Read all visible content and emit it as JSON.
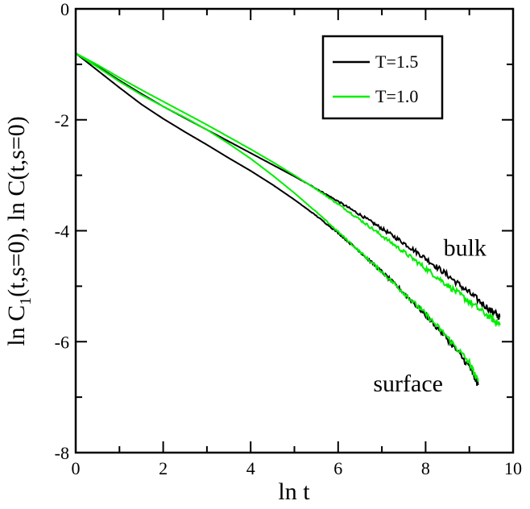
{
  "chart_data": {
    "type": "line",
    "title": "",
    "xlabel": "ln t",
    "ylabel": "ln C1(t,s=0), ln C(t,s=0)",
    "ylabel_parts": {
      "a": "ln C",
      "sub": "1",
      "b": "(t,s=0), ln C(t,s=0)"
    },
    "xlim": [
      0,
      10
    ],
    "ylim": [
      -8,
      0
    ],
    "xticks": [
      0,
      2,
      4,
      6,
      8,
      10
    ],
    "yticks": [
      0,
      -2,
      -4,
      -6,
      -8
    ],
    "xtick_labels": [
      "0",
      "2",
      "4",
      "6",
      "8",
      "10"
    ],
    "ytick_labels": [
      "0",
      "-2",
      "-4",
      "-6",
      "-8"
    ],
    "grid": false,
    "legend": {
      "placement": "top-right",
      "entries": [
        {
          "label": "T=1.5",
          "color": "#000000"
        },
        {
          "label": "T=1.0",
          "color": "#00ee00"
        }
      ]
    },
    "annotations": [
      {
        "text": "bulk",
        "x": 8.9,
        "y": -4.45
      },
      {
        "text": "surface",
        "x": 7.6,
        "y": -6.9
      }
    ],
    "series": [
      {
        "name": "T=1.5 bulk",
        "color": "#000000",
        "points": [
          [
            0,
            -0.8
          ],
          [
            0.5,
            -1.04
          ],
          [
            1,
            -1.29
          ],
          [
            1.5,
            -1.53
          ],
          [
            2,
            -1.76
          ],
          [
            2.5,
            -1.97
          ],
          [
            3,
            -2.18
          ],
          [
            3.5,
            -2.39
          ],
          [
            4,
            -2.6
          ],
          [
            4.5,
            -2.81
          ],
          [
            5,
            -3.02
          ],
          [
            5.5,
            -3.24
          ],
          [
            6,
            -3.47
          ],
          [
            6.5,
            -3.71
          ],
          [
            7,
            -3.96
          ],
          [
            7.5,
            -4.22
          ],
          [
            8,
            -4.5
          ],
          [
            8.5,
            -4.8
          ],
          [
            9,
            -5.12
          ],
          [
            9.5,
            -5.44
          ],
          [
            9.7,
            -5.56
          ]
        ]
      },
      {
        "name": "T=1.0 bulk",
        "color": "#00ee00",
        "points": [
          [
            0,
            -0.8
          ],
          [
            0.5,
            -1.01
          ],
          [
            1,
            -1.24
          ],
          [
            1.5,
            -1.46
          ],
          [
            2,
            -1.67
          ],
          [
            2.5,
            -1.88
          ],
          [
            3,
            -2.09
          ],
          [
            3.5,
            -2.31
          ],
          [
            4,
            -2.53
          ],
          [
            4.5,
            -2.76
          ],
          [
            5,
            -3.0
          ],
          [
            5.5,
            -3.25
          ],
          [
            6,
            -3.52
          ],
          [
            6.5,
            -3.8
          ],
          [
            7,
            -4.09
          ],
          [
            7.5,
            -4.38
          ],
          [
            8,
            -4.68
          ],
          [
            8.5,
            -4.98
          ],
          [
            9,
            -5.28
          ],
          [
            9.5,
            -5.58
          ],
          [
            9.7,
            -5.7
          ]
        ]
      },
      {
        "name": "T=1.5 surface",
        "color": "#000000",
        "points": [
          [
            0,
            -0.8
          ],
          [
            0.5,
            -1.11
          ],
          [
            1,
            -1.42
          ],
          [
            1.5,
            -1.72
          ],
          [
            2,
            -1.98
          ],
          [
            2.5,
            -2.22
          ],
          [
            3,
            -2.45
          ],
          [
            3.5,
            -2.69
          ],
          [
            4,
            -2.92
          ],
          [
            4.5,
            -3.17
          ],
          [
            5,
            -3.44
          ],
          [
            5.5,
            -3.73
          ],
          [
            6,
            -4.04
          ],
          [
            6.5,
            -4.38
          ],
          [
            7,
            -4.74
          ],
          [
            7.5,
            -5.12
          ],
          [
            8,
            -5.52
          ],
          [
            8.5,
            -5.95
          ],
          [
            9,
            -6.45
          ],
          [
            9.2,
            -6.78
          ]
        ]
      },
      {
        "name": "T=1.0 surface",
        "color": "#00ee00",
        "points": [
          [
            0,
            -0.8
          ],
          [
            0.5,
            -1.05
          ],
          [
            1,
            -1.31
          ],
          [
            1.5,
            -1.55
          ],
          [
            2,
            -1.76
          ],
          [
            2.5,
            -1.96
          ],
          [
            3,
            -2.18
          ],
          [
            3.5,
            -2.43
          ],
          [
            4,
            -2.7
          ],
          [
            4.5,
            -3.0
          ],
          [
            5,
            -3.32
          ],
          [
            5.5,
            -3.66
          ],
          [
            6,
            -4.02
          ],
          [
            6.5,
            -4.38
          ],
          [
            7,
            -4.74
          ],
          [
            7.5,
            -5.12
          ],
          [
            8,
            -5.5
          ],
          [
            8.5,
            -5.92
          ],
          [
            9,
            -6.38
          ],
          [
            9.2,
            -6.72
          ]
        ]
      }
    ]
  }
}
